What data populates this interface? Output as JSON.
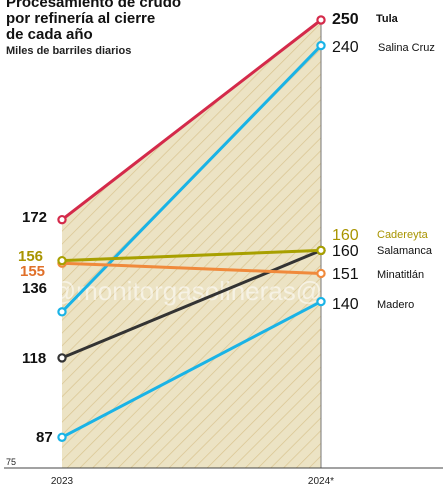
{
  "chart_data": {
    "type": "line",
    "title_lines": [
      "Procesamiento de crudo",
      "por refinería al cierre",
      "de cada año"
    ],
    "subtitle": "Miles de barriles diarios",
    "categories": [
      "2023",
      "2024*"
    ],
    "y_axis_min_label": "75",
    "ylim": [
      75,
      250
    ],
    "series": [
      {
        "name": "Tula",
        "values": [
          172,
          250
        ],
        "left_label": "172",
        "right_label": "250",
        "color": "#d42a4a",
        "left_label_color": "#111111",
        "right_label_color": "#111111",
        "bold_right": true
      },
      {
        "name": "Salina Cruz",
        "values": [
          136,
          240
        ],
        "left_label": "136",
        "right_label": "240",
        "color": "#1ab3e6",
        "left_label_color": "#111111",
        "right_label_color": "#111111",
        "bold_right": false
      },
      {
        "name": "Cadereyta",
        "values": [
          156,
          160
        ],
        "left_label": "156",
        "right_label": "160",
        "color": "#a8a000",
        "left_label_color": "#a89400",
        "right_label_color": "#a89400",
        "bold_right": false
      },
      {
        "name": "Salamanca",
        "values": [
          118,
          160
        ],
        "left_label": "118",
        "right_label": "160",
        "color": "#333333",
        "left_label_color": "#111111",
        "right_label_color": "#111111",
        "bold_right": false
      },
      {
        "name": "Minatitlán",
        "values": [
          155,
          151
        ],
        "left_label": "155",
        "right_label": "151",
        "color": "#f08a3c",
        "left_label_color": "#e0702a",
        "right_label_color": "#111111",
        "bold_right": false
      },
      {
        "name": "Madero",
        "values": [
          87,
          140
        ],
        "left_label": "87",
        "right_label": "140",
        "color": "#1ab3e6",
        "left_label_color": "#111111",
        "right_label_color": "#111111",
        "bold_right": false
      }
    ],
    "area_fill": "#ece3c4",
    "hatch_color": "#d9c48f",
    "watermark": "sala@monitorgasolineras@e"
  }
}
